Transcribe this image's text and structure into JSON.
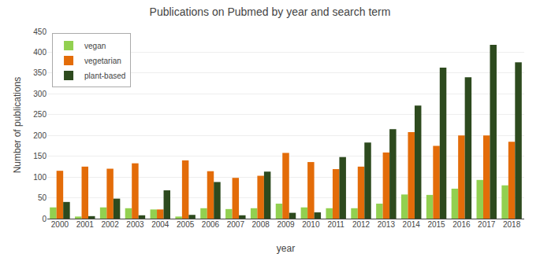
{
  "chart_data": {
    "type": "bar",
    "title": "Publications on Pubmed by year and search term",
    "xlabel": "year",
    "ylabel": "Number of publications",
    "categories": [
      "2000",
      "2001",
      "2002",
      "2003",
      "2004",
      "2005",
      "2006",
      "2007",
      "2008",
      "2009",
      "2010",
      "2011",
      "2012",
      "2013",
      "2014",
      "2015",
      "2016",
      "2017",
      "2018"
    ],
    "series": [
      {
        "name": "vegan",
        "color": "#92D050",
        "values": [
          27,
          5,
          27,
          25,
          22,
          5,
          25,
          23,
          25,
          36,
          27,
          25,
          25,
          36,
          58,
          57,
          72,
          93,
          80
        ]
      },
      {
        "name": "vegetarian",
        "color": "#E36C09",
        "values": [
          115,
          125,
          120,
          133,
          22,
          140,
          114,
          98,
          103,
          158,
          136,
          119,
          125,
          159,
          208,
          175,
          200,
          200,
          185
        ]
      },
      {
        "name": "plant-based",
        "color": "#2D4A1E",
        "values": [
          40,
          6,
          48,
          8,
          68,
          9,
          88,
          8,
          113,
          14,
          15,
          148,
          183,
          215,
          272,
          363,
          340,
          418,
          376
        ]
      }
    ],
    "ylim": [
      0,
      450
    ],
    "yticks": [
      0,
      50,
      100,
      150,
      200,
      250,
      300,
      350,
      400,
      450
    ],
    "grid": true,
    "legend": "upper left"
  }
}
